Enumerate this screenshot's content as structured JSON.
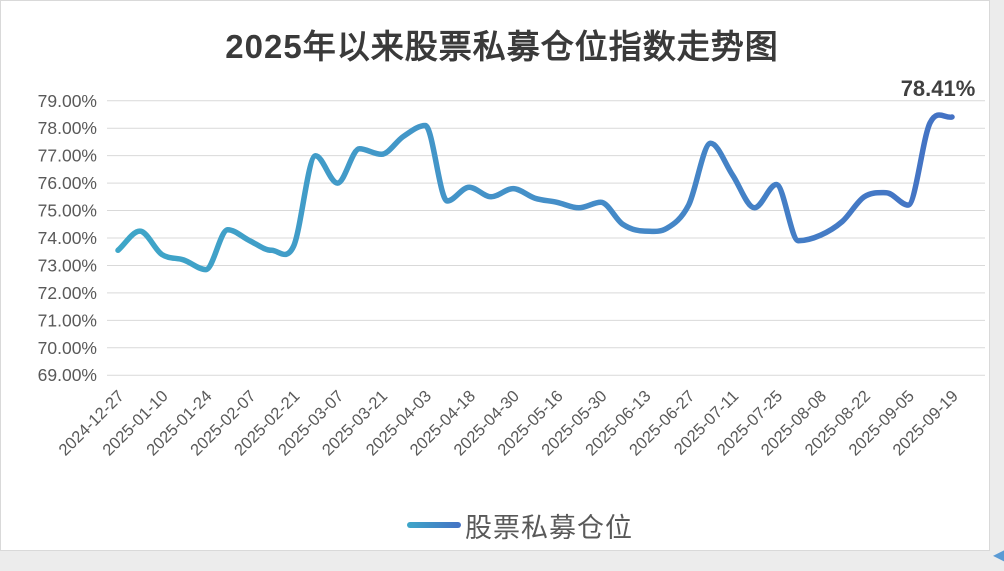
{
  "chart_data": {
    "type": "line",
    "title": "2025年以来股票私募仓位指数走势图",
    "series_name": "股票私募仓位",
    "end_annotation": "78.41%",
    "x_labels": [
      "2024-12-27",
      "2025-01-10",
      "2025-01-24",
      "2025-02-07",
      "2025-02-21",
      "2025-03-07",
      "2025-03-21",
      "2025-04-03",
      "2025-04-18",
      "2025-04-30",
      "2025-05-16",
      "2025-05-30",
      "2025-06-13",
      "2025-06-27",
      "2025-07-11",
      "2025-07-25",
      "2025-08-08",
      "2025-08-22",
      "2025-09-05",
      "2025-09-19"
    ],
    "label_every": 2,
    "values": [
      73.55,
      74.25,
      73.4,
      73.2,
      72.85,
      74.3,
      73.9,
      73.55,
      73.7,
      77.0,
      76.0,
      77.25,
      77.05,
      77.7,
      78.1,
      75.35,
      75.85,
      75.5,
      75.8,
      75.45,
      75.3,
      75.1,
      75.3,
      74.5,
      74.25,
      74.35,
      75.2,
      77.45,
      76.3,
      75.1,
      75.95,
      73.9,
      74.1,
      74.6,
      75.5,
      75.65,
      75.2,
      78.2,
      78.41
    ],
    "y_ticks": [
      "79.00%",
      "78.00%",
      "77.00%",
      "76.00%",
      "75.00%",
      "74.00%",
      "73.00%",
      "72.00%",
      "71.00%",
      "70.00%",
      "69.00%"
    ],
    "y_min": 69,
    "y_max": 79,
    "grid": "horizontal",
    "legend_position": "bottom",
    "line_smooth": true
  },
  "icons": {
    "corner_arrow": "◀"
  },
  "colors": {
    "line_start": "#3EA6C8",
    "line_mid": "#4590C8",
    "line_end": "#4472C4",
    "axis_label": "#595959",
    "grid": "#D9D9D9",
    "title": "#3A3A3A",
    "annotation": "#404040",
    "arrow": "#5B9BD5",
    "page_bg": "#ECECEC",
    "panel_bg": "#FFFFFF"
  }
}
